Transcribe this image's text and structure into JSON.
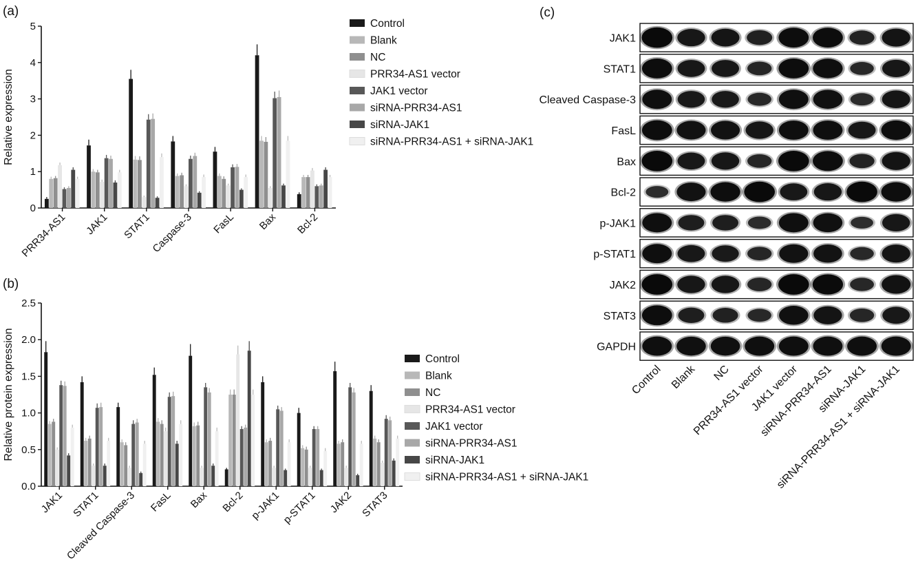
{
  "panels": {
    "a_label": "(a)",
    "b_label": "(b)",
    "c_label": "(c)"
  },
  "colors": {
    "series": [
      "#1a1a1a",
      "#b8b8b8",
      "#8f8f8f",
      "#e6e6e6",
      "#585858",
      "#a8a8a8",
      "#474747",
      "#f0f0f0"
    ]
  },
  "chart_data": [
    {
      "panel": "(a)",
      "type": "bar",
      "title": "",
      "xlabel": "",
      "ylabel": "Relative expression",
      "ylim": [
        0,
        5
      ],
      "yticks": [
        "0",
        "1",
        "2",
        "3",
        "4",
        "5"
      ],
      "legend_placement": "top-right",
      "categories": [
        "PRR34-AS1",
        "JAK1",
        "STAT1",
        "Caspase-3",
        "FasL",
        "Bax",
        "Bcl-2"
      ],
      "series": [
        {
          "name": "Control",
          "values": [
            0.25,
            1.72,
            3.55,
            1.83,
            1.55,
            4.2,
            0.38
          ],
          "errors": [
            0.05,
            0.16,
            0.25,
            0.15,
            0.13,
            0.3,
            0.05
          ]
        },
        {
          "name": "Blank",
          "values": [
            0.8,
            1.0,
            1.33,
            0.88,
            0.88,
            1.85,
            0.85
          ],
          "errors": [
            0.06,
            0.07,
            0.1,
            0.07,
            0.07,
            0.13,
            0.06
          ]
        },
        {
          "name": "NC",
          "values": [
            0.82,
            0.98,
            1.32,
            0.9,
            0.8,
            1.82,
            0.85
          ],
          "errors": [
            0.06,
            0.07,
            0.1,
            0.07,
            0.07,
            0.13,
            0.06
          ]
        },
        {
          "name": "PRR34-AS1 vector",
          "values": [
            1.18,
            0.72,
            0.3,
            0.6,
            0.62,
            0.55,
            1.03
          ],
          "errors": [
            0.07,
            0.06,
            0.04,
            0.05,
            0.05,
            0.05,
            0.07
          ]
        },
        {
          "name": "JAK1 vector",
          "values": [
            0.52,
            1.37,
            2.43,
            1.35,
            1.12,
            3.02,
            0.6
          ],
          "errors": [
            0.05,
            0.09,
            0.15,
            0.09,
            0.08,
            0.18,
            0.05
          ]
        },
        {
          "name": "siRNA-PRR34-AS1",
          "values": [
            0.55,
            1.35,
            2.45,
            1.43,
            1.13,
            3.05,
            0.62
          ],
          "errors": [
            0.05,
            0.09,
            0.15,
            0.09,
            0.08,
            0.18,
            0.05
          ]
        },
        {
          "name": "siRNA-JAK1",
          "values": [
            1.05,
            0.7,
            0.28,
            0.42,
            0.5,
            0.62,
            1.05
          ],
          "errors": [
            0.07,
            0.06,
            0.04,
            0.04,
            0.04,
            0.05,
            0.07
          ]
        },
        {
          "name": "siRNA-PRR34-AS1 + siRNA-JAK1",
          "values": [
            0.8,
            0.98,
            1.4,
            0.85,
            0.85,
            1.85,
            0.85
          ],
          "errors": [
            0.06,
            0.07,
            0.1,
            0.07,
            0.07,
            0.13,
            0.06
          ]
        }
      ]
    },
    {
      "panel": "(b)",
      "type": "bar",
      "title": "",
      "xlabel": "",
      "ylabel": "Relative protein expression",
      "ylim": [
        0,
        2.5
      ],
      "yticks": [
        "0.0",
        "0.5",
        "1.0",
        "1.5",
        "2.0",
        "2.5"
      ],
      "legend_placement": "right",
      "categories": [
        "JAK1",
        "STAT1",
        "Cleaved Caspase-3",
        "FasL",
        "Bax",
        "Bcl-2",
        "p-JAK1",
        "p-STAT1",
        "JAK2",
        "STAT3"
      ],
      "series": [
        {
          "name": "Control",
          "values": [
            1.83,
            1.42,
            1.08,
            1.52,
            1.78,
            0.23,
            1.42,
            1.0,
            1.57,
            1.3
          ],
          "errors": [
            0.15,
            0.08,
            0.06,
            0.1,
            0.16,
            0.02,
            0.08,
            0.07,
            0.13,
            0.08
          ]
        },
        {
          "name": "Blank",
          "values": [
            0.85,
            0.62,
            0.6,
            0.88,
            0.82,
            1.25,
            0.6,
            0.52,
            0.58,
            0.65
          ],
          "errors": [
            0.04,
            0.04,
            0.04,
            0.05,
            0.05,
            0.07,
            0.04,
            0.04,
            0.04,
            0.04
          ]
        },
        {
          "name": "NC",
          "values": [
            0.88,
            0.65,
            0.56,
            0.85,
            0.83,
            1.25,
            0.62,
            0.5,
            0.6,
            0.6
          ],
          "errors": [
            0.04,
            0.04,
            0.04,
            0.05,
            0.05,
            0.07,
            0.04,
            0.04,
            0.04,
            0.04
          ]
        },
        {
          "name": "PRR34-AS1 vector",
          "values": [
            0.5,
            0.28,
            0.25,
            0.75,
            0.25,
            1.8,
            0.25,
            0.25,
            0.25,
            0.32
          ],
          "errors": [
            0.03,
            0.03,
            0.03,
            0.05,
            0.03,
            0.12,
            0.03,
            0.03,
            0.03,
            0.03
          ]
        },
        {
          "name": "JAK1 vector",
          "values": [
            1.38,
            1.07,
            0.85,
            1.22,
            1.35,
            0.78,
            1.05,
            0.78,
            1.35,
            0.92
          ],
          "errors": [
            0.06,
            0.06,
            0.05,
            0.06,
            0.06,
            0.04,
            0.05,
            0.04,
            0.06,
            0.05
          ]
        },
        {
          "name": "siRNA-PRR34-AS1",
          "values": [
            1.37,
            1.08,
            0.87,
            1.23,
            1.28,
            0.8,
            1.03,
            0.78,
            1.28,
            0.9
          ],
          "errors": [
            0.06,
            0.06,
            0.05,
            0.06,
            0.06,
            0.04,
            0.05,
            0.04,
            0.06,
            0.05
          ]
        },
        {
          "name": "siRNA-JAK1",
          "values": [
            0.42,
            0.28,
            0.18,
            0.58,
            0.28,
            1.85,
            0.22,
            0.22,
            0.15,
            0.35
          ],
          "errors": [
            0.03,
            0.03,
            0.02,
            0.04,
            0.03,
            0.13,
            0.02,
            0.02,
            0.02,
            0.03
          ]
        },
        {
          "name": "siRNA-PRR34-AS1 + siRNA-JAK1",
          "values": [
            0.8,
            0.62,
            0.58,
            0.85,
            0.75,
            1.25,
            0.6,
            0.48,
            0.58,
            0.65
          ],
          "errors": [
            0.04,
            0.04,
            0.04,
            0.05,
            0.05,
            0.07,
            0.04,
            0.04,
            0.04,
            0.04
          ]
        }
      ]
    }
  ],
  "western_blot": {
    "panel": "(c)",
    "rows": [
      "JAK1",
      "STAT1",
      "Cleaved Caspase-3",
      "FasL",
      "Bax",
      "Bcl-2",
      "p-JAK1",
      "p-STAT1",
      "JAK2",
      "STAT3",
      "GAPDH"
    ],
    "lanes": [
      "Control",
      "Blank",
      "NC",
      "PRR34-AS1 vector",
      "JAK1 vector",
      "siRNA-PRR34-AS1",
      "siRNA-JAK1",
      "siRNA-PRR34-AS1 + siRNA-JAK1"
    ],
    "band_intensity": [
      [
        1.0,
        0.75,
        0.78,
        0.55,
        0.95,
        0.95,
        0.5,
        0.8
      ],
      [
        0.95,
        0.72,
        0.72,
        0.45,
        0.95,
        0.92,
        0.4,
        0.75
      ],
      [
        0.9,
        0.7,
        0.7,
        0.4,
        0.9,
        0.88,
        0.35,
        0.78
      ],
      [
        0.95,
        0.85,
        0.85,
        0.75,
        0.9,
        0.9,
        0.72,
        0.92
      ],
      [
        1.0,
        0.72,
        0.75,
        0.45,
        1.0,
        0.95,
        0.5,
        0.8
      ],
      [
        0.3,
        0.85,
        0.92,
        1.0,
        0.72,
        0.75,
        1.0,
        0.92
      ],
      [
        0.9,
        0.6,
        0.6,
        0.35,
        0.9,
        0.88,
        0.3,
        0.75
      ],
      [
        0.9,
        0.72,
        0.68,
        0.45,
        0.85,
        0.82,
        0.4,
        0.8
      ],
      [
        1.0,
        0.75,
        0.75,
        0.45,
        1.0,
        0.98,
        0.42,
        0.85
      ],
      [
        0.95,
        0.6,
        0.55,
        0.4,
        0.88,
        0.8,
        0.45,
        0.72
      ],
      [
        0.9,
        0.88,
        0.88,
        0.9,
        0.9,
        0.9,
        0.9,
        0.9
      ]
    ]
  }
}
